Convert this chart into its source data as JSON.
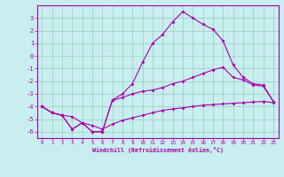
{
  "xlabel": "Windchill (Refroidissement éolien,°C)",
  "bg_color": "#c8eef0",
  "line_color": "#aa00aa",
  "grid_color": "#99ccbb",
  "xlim": [
    -0.5,
    23.5
  ],
  "ylim": [
    -6.5,
    4.0
  ],
  "yticks": [
    -6,
    -5,
    -4,
    -3,
    -2,
    -1,
    0,
    1,
    2,
    3
  ],
  "xticks": [
    0,
    1,
    2,
    3,
    4,
    5,
    6,
    7,
    8,
    9,
    10,
    11,
    12,
    13,
    14,
    15,
    16,
    17,
    18,
    19,
    20,
    21,
    22,
    23
  ],
  "line1_x": [
    0,
    1,
    2,
    3,
    4,
    5,
    6,
    7,
    8,
    9,
    10,
    11,
    12,
    13,
    14,
    15,
    16,
    17,
    18,
    19,
    20,
    21,
    22,
    23
  ],
  "line1_y": [
    -4.0,
    -4.5,
    -4.7,
    -4.8,
    -5.3,
    -5.5,
    -5.8,
    -5.4,
    -5.1,
    -4.9,
    -4.7,
    -4.5,
    -4.3,
    -4.2,
    -4.1,
    -4.0,
    -3.9,
    -3.85,
    -3.8,
    -3.75,
    -3.7,
    -3.65,
    -3.6,
    -3.7
  ],
  "line2_x": [
    0,
    1,
    2,
    3,
    4,
    5,
    6,
    7,
    8,
    9,
    10,
    11,
    12,
    13,
    14,
    15,
    16,
    17,
    18,
    19,
    20,
    21,
    22,
    23
  ],
  "line2_y": [
    -4.0,
    -4.5,
    -4.7,
    -5.8,
    -5.3,
    -6.0,
    -6.0,
    -3.5,
    -3.0,
    -2.2,
    -0.5,
    1.0,
    1.7,
    2.7,
    3.5,
    3.0,
    2.5,
    2.1,
    1.2,
    -0.7,
    -1.7,
    -2.2,
    -2.3,
    -3.6
  ],
  "line3_x": [
    0,
    1,
    2,
    3,
    4,
    5,
    6,
    7,
    8,
    9,
    10,
    11,
    12,
    13,
    14,
    15,
    16,
    17,
    18,
    19,
    20,
    21,
    22,
    23
  ],
  "line3_y": [
    -4.0,
    -4.5,
    -4.7,
    -5.8,
    -5.3,
    -6.0,
    -6.0,
    -3.5,
    -3.3,
    -3.0,
    -2.8,
    -2.7,
    -2.5,
    -2.2,
    -2.0,
    -1.7,
    -1.4,
    -1.1,
    -0.9,
    -1.7,
    -1.9,
    -2.3,
    -2.4,
    -3.6
  ]
}
